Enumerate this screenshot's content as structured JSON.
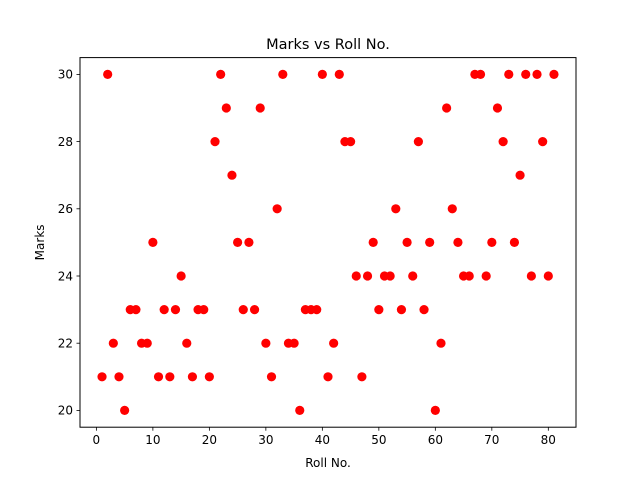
{
  "chart_data": {
    "type": "scatter",
    "title": "Marks vs Roll No.",
    "xlabel": "Roll No.",
    "ylabel": "Marks",
    "xlim": [
      -2.9,
      84.9
    ],
    "ylim": [
      19.5,
      30.5
    ],
    "xticks": [
      0,
      10,
      20,
      30,
      40,
      50,
      60,
      70,
      80
    ],
    "yticks": [
      20,
      22,
      24,
      26,
      28,
      30
    ],
    "grid": false,
    "marker_color": "#ff0000",
    "series": [
      {
        "points": [
          {
            "x": 1,
            "y": 21
          },
          {
            "x": 2,
            "y": 30
          },
          {
            "x": 3,
            "y": 22
          },
          {
            "x": 4,
            "y": 21
          },
          {
            "x": 5,
            "y": 20
          },
          {
            "x": 6,
            "y": 23
          },
          {
            "x": 7,
            "y": 23
          },
          {
            "x": 8,
            "y": 22
          },
          {
            "x": 9,
            "y": 22
          },
          {
            "x": 10,
            "y": 25
          },
          {
            "x": 11,
            "y": 21
          },
          {
            "x": 12,
            "y": 23
          },
          {
            "x": 13,
            "y": 21
          },
          {
            "x": 14,
            "y": 23
          },
          {
            "x": 15,
            "y": 24
          },
          {
            "x": 16,
            "y": 22
          },
          {
            "x": 17,
            "y": 21
          },
          {
            "x": 18,
            "y": 23
          },
          {
            "x": 19,
            "y": 23
          },
          {
            "x": 20,
            "y": 21
          },
          {
            "x": 21,
            "y": 28
          },
          {
            "x": 22,
            "y": 30
          },
          {
            "x": 23,
            "y": 29
          },
          {
            "x": 24,
            "y": 27
          },
          {
            "x": 25,
            "y": 25
          },
          {
            "x": 26,
            "y": 23
          },
          {
            "x": 27,
            "y": 25
          },
          {
            "x": 28,
            "y": 23
          },
          {
            "x": 29,
            "y": 29
          },
          {
            "x": 30,
            "y": 22
          },
          {
            "x": 31,
            "y": 21
          },
          {
            "x": 32,
            "y": 26
          },
          {
            "x": 33,
            "y": 30
          },
          {
            "x": 34,
            "y": 22
          },
          {
            "x": 35,
            "y": 22
          },
          {
            "x": 36,
            "y": 20
          },
          {
            "x": 37,
            "y": 23
          },
          {
            "x": 38,
            "y": 23
          },
          {
            "x": 39,
            "y": 23
          },
          {
            "x": 40,
            "y": 30
          },
          {
            "x": 41,
            "y": 21
          },
          {
            "x": 42,
            "y": 22
          },
          {
            "x": 43,
            "y": 30
          },
          {
            "x": 44,
            "y": 28
          },
          {
            "x": 45,
            "y": 28
          },
          {
            "x": 46,
            "y": 24
          },
          {
            "x": 47,
            "y": 21
          },
          {
            "x": 48,
            "y": 24
          },
          {
            "x": 49,
            "y": 25
          },
          {
            "x": 50,
            "y": 23
          },
          {
            "x": 51,
            "y": 24
          },
          {
            "x": 52,
            "y": 24
          },
          {
            "x": 53,
            "y": 26
          },
          {
            "x": 54,
            "y": 23
          },
          {
            "x": 55,
            "y": 25
          },
          {
            "x": 56,
            "y": 24
          },
          {
            "x": 57,
            "y": 28
          },
          {
            "x": 58,
            "y": 23
          },
          {
            "x": 59,
            "y": 25
          },
          {
            "x": 60,
            "y": 20
          },
          {
            "x": 61,
            "y": 22
          },
          {
            "x": 62,
            "y": 29
          },
          {
            "x": 63,
            "y": 26
          },
          {
            "x": 64,
            "y": 25
          },
          {
            "x": 65,
            "y": 24
          },
          {
            "x": 66,
            "y": 24
          },
          {
            "x": 67,
            "y": 30
          },
          {
            "x": 68,
            "y": 30
          },
          {
            "x": 69,
            "y": 24
          },
          {
            "x": 70,
            "y": 25
          },
          {
            "x": 71,
            "y": 29
          },
          {
            "x": 72,
            "y": 28
          },
          {
            "x": 73,
            "y": 30
          },
          {
            "x": 74,
            "y": 25
          },
          {
            "x": 75,
            "y": 27
          },
          {
            "x": 76,
            "y": 30
          },
          {
            "x": 77,
            "y": 24
          },
          {
            "x": 78,
            "y": 30
          },
          {
            "x": 79,
            "y": 28
          },
          {
            "x": 80,
            "y": 24
          },
          {
            "x": 81,
            "y": 30
          }
        ]
      }
    ]
  }
}
